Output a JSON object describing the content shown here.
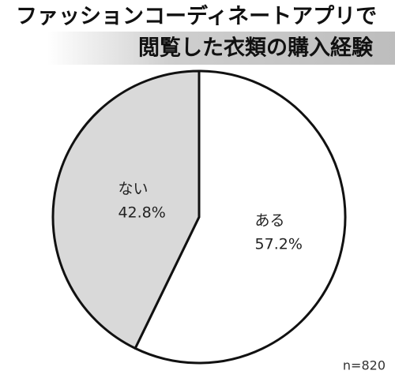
{
  "chart_data": {
    "type": "pie",
    "title": [
      "ファッションコーディネートアプリで",
      "閲覧した衣類の購入経験"
    ],
    "categories": [
      "ある",
      "ない"
    ],
    "values": [
      57.2,
      42.8
    ],
    "value_labels": [
      "57.2%",
      "42.8%"
    ],
    "colors": [
      "#ffffff",
      "#d9d9d9"
    ],
    "note": "n=820"
  }
}
